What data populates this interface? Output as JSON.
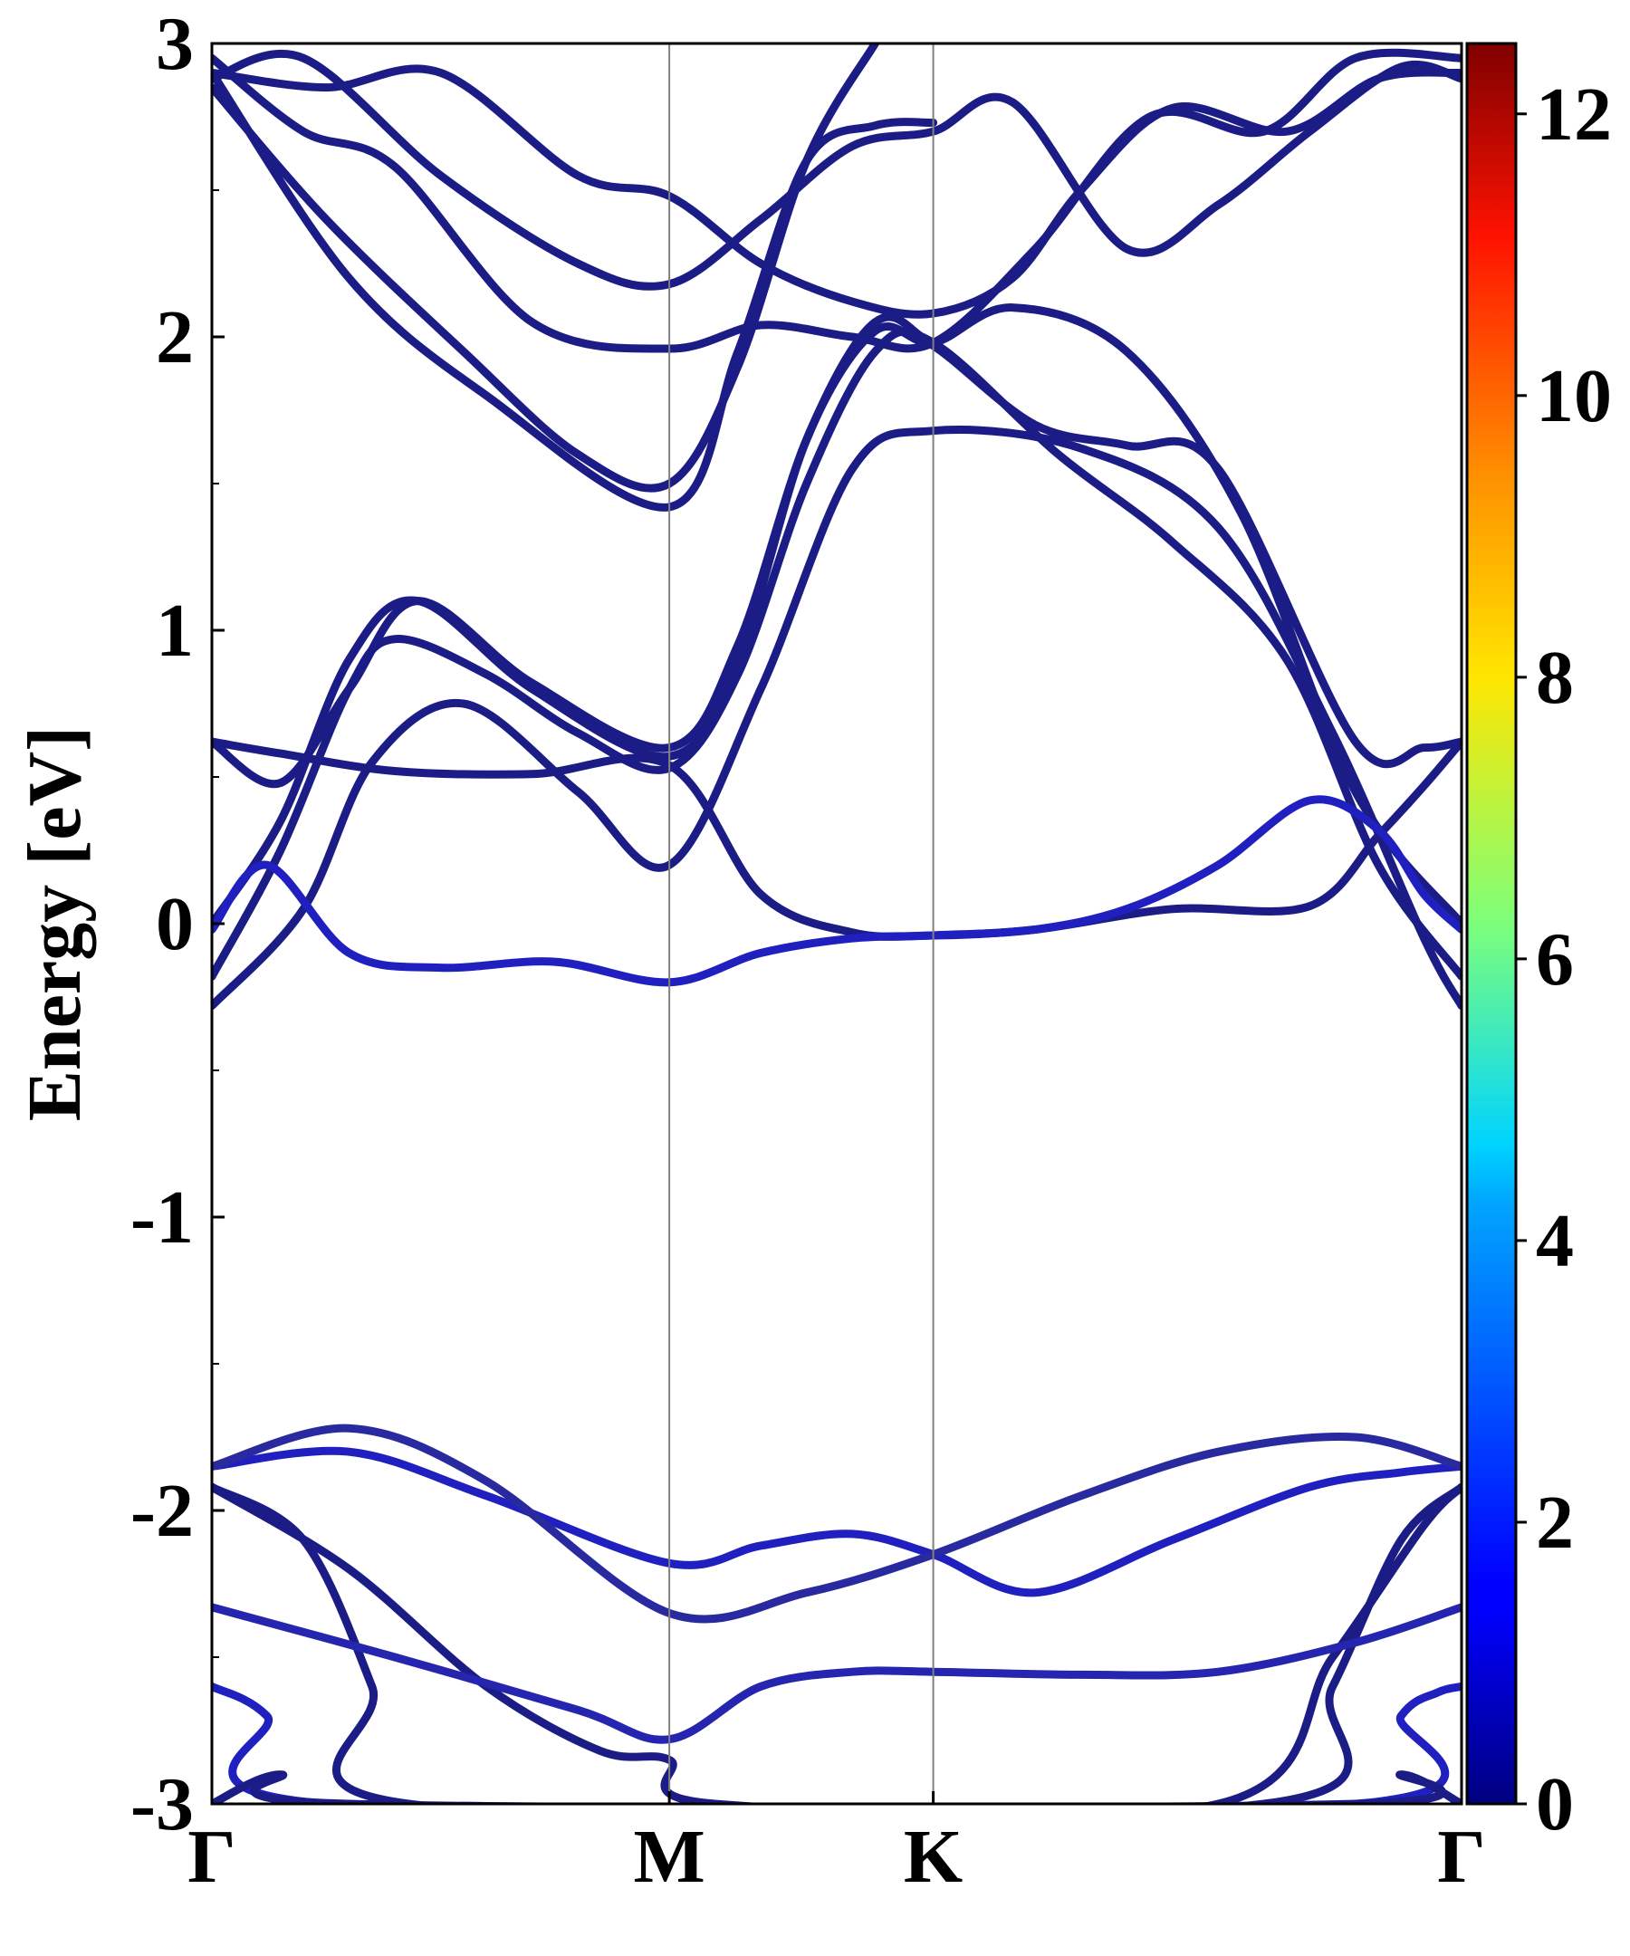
{
  "chart_data": {
    "type": "line",
    "title": "",
    "xlabel": "",
    "ylabel": "Energy [eV]",
    "ylim": [
      -3,
      3
    ],
    "y_ticks": [
      "3",
      "2",
      "1",
      "0",
      "-1",
      "-2",
      "-3"
    ],
    "y_tick_values": [
      3,
      2,
      1,
      0,
      -1,
      -2,
      -3
    ],
    "k_points": [
      {
        "label": "Γ",
        "x": 0.0
      },
      {
        "label": "M",
        "x": 1.0
      },
      {
        "label": "K",
        "x": 1.577
      },
      {
        "label": "Γ",
        "x": 2.732
      }
    ],
    "xlim": [
      0,
      2.732
    ],
    "grid": false,
    "colorbar": {
      "colormap": "jet",
      "range": [
        0,
        12.5
      ],
      "ticks": [
        "0",
        "2",
        "4",
        "6",
        "8",
        "10",
        "12"
      ],
      "tick_values": [
        0,
        2,
        4,
        6,
        8,
        10,
        12
      ]
    },
    "series": [
      {
        "color": "#1c1c86",
        "x": [
          0,
          0.2,
          0.35,
          0.55,
          0.8,
          1.0,
          1.2,
          1.4,
          1.577,
          1.9,
          2.2,
          2.45,
          2.65,
          2.732
        ],
        "y": [
          -0.28,
          0.05,
          0.55,
          0.75,
          0.45,
          0.2,
          0.8,
          1.55,
          1.68,
          1.62,
          1.35,
          0.65,
          -0.05,
          -0.28
        ]
      },
      {
        "color": "#1c1c86",
        "x": [
          0,
          0.15,
          0.3,
          0.4,
          0.6,
          0.8,
          1.0,
          1.15,
          1.3,
          1.45,
          1.577,
          1.85,
          2.1,
          2.35,
          2.55,
          2.732
        ],
        "y": [
          -0.18,
          0.25,
          0.8,
          0.97,
          0.85,
          0.65,
          0.53,
          0.85,
          1.5,
          1.95,
          1.98,
          1.6,
          1.3,
          0.9,
          0.2,
          -0.18
        ]
      },
      {
        "color": "#1c1c86",
        "x": [
          0,
          0.15,
          0.3,
          0.45,
          0.7,
          1.0,
          1.15,
          1.3,
          1.45,
          1.577,
          1.75,
          2.0,
          2.25,
          2.5,
          2.732
        ],
        "y": [
          0.0,
          0.35,
          0.9,
          1.1,
          0.8,
          0.57,
          0.9,
          1.65,
          2.02,
          1.98,
          2.1,
          1.95,
          1.4,
          0.45,
          0.0
        ]
      },
      {
        "color": "#1c1c86",
        "x": [
          0,
          0.15,
          0.3,
          0.45,
          0.7,
          1.0,
          1.15,
          1.3,
          1.45,
          1.577,
          1.8,
          2.0,
          2.2,
          2.5,
          2.65,
          2.732
        ],
        "y": [
          0.62,
          0.48,
          0.8,
          1.1,
          0.82,
          0.6,
          0.95,
          1.65,
          2.05,
          1.97,
          1.7,
          1.63,
          1.55,
          0.62,
          0.6,
          0.62
        ]
      },
      {
        "color": "#1c1c86",
        "x": [
          0,
          0.15,
          0.4,
          0.7,
          1.0,
          1.2,
          1.4,
          1.577,
          1.8,
          2.1,
          2.4,
          2.55,
          2.65,
          2.732
        ],
        "y": [
          0.62,
          0.58,
          0.52,
          0.51,
          0.54,
          0.1,
          -0.03,
          -0.04,
          -0.02,
          0.05,
          0.06,
          0.3,
          0.47,
          0.62
        ]
      },
      {
        "color": "#2020c0",
        "x": [
          0,
          0.12,
          0.3,
          0.5,
          0.75,
          1.0,
          1.2,
          1.4,
          1.577,
          1.8,
          2.0,
          2.2,
          2.4,
          2.55,
          2.65,
          2.732
        ],
        "y": [
          -0.02,
          0.2,
          -0.1,
          -0.15,
          -0.13,
          -0.2,
          -0.1,
          -0.05,
          -0.04,
          -0.02,
          0.05,
          0.2,
          0.42,
          0.32,
          0.1,
          -0.02
        ]
      },
      {
        "color": "#1c1c86",
        "x": [
          0,
          0.3,
          0.6,
          1.0,
          1.15,
          1.3,
          1.45,
          1.577
        ],
        "y": [
          2.9,
          2.2,
          1.8,
          1.42,
          1.95,
          2.6,
          2.72,
          2.73
        ]
      },
      {
        "color": "#1c1c86",
        "x": [
          0,
          0.25,
          0.55,
          0.8,
          1.0,
          1.15,
          1.3,
          1.45
        ],
        "y": [
          2.85,
          2.4,
          1.95,
          1.6,
          1.5,
          1.9,
          2.6,
          3.0
        ]
      },
      {
        "color": "#1c1c86",
        "x": [
          0,
          0.2,
          0.5,
          0.8,
          1.0,
          1.2,
          1.4,
          1.577,
          1.75,
          2.0,
          2.2,
          2.4,
          2.6,
          2.732
        ],
        "y": [
          2.88,
          2.95,
          2.55,
          2.25,
          2.18,
          2.4,
          2.65,
          2.7,
          2.8,
          2.3,
          2.45,
          2.7,
          2.92,
          2.88
        ]
      },
      {
        "color": "#1c1c86",
        "x": [
          0,
          0.25,
          0.5,
          0.8,
          1.0,
          1.2,
          1.4,
          1.577,
          1.75,
          1.9,
          2.1,
          2.35,
          2.55,
          2.732
        ],
        "y": [
          2.9,
          2.85,
          2.9,
          2.55,
          2.48,
          2.25,
          2.12,
          2.08,
          2.2,
          2.5,
          2.78,
          2.7,
          2.88,
          2.9
        ]
      },
      {
        "color": "#1c1c86",
        "x": [
          0,
          0.2,
          0.4,
          0.7,
          1.0,
          1.2,
          1.4,
          1.577,
          1.8,
          2.05,
          2.3,
          2.5,
          2.732
        ],
        "y": [
          2.95,
          2.7,
          2.58,
          2.05,
          1.96,
          2.04,
          2.0,
          1.98,
          2.3,
          2.75,
          2.7,
          2.95,
          2.95
        ]
      },
      {
        "color": "#2020c0",
        "x": [
          0,
          0.3,
          0.6,
          1.0,
          1.2,
          1.4,
          1.577,
          1.8,
          2.1,
          2.4,
          2.6,
          2.732
        ],
        "y": [
          -1.85,
          -1.8,
          -1.95,
          -2.18,
          -2.12,
          -2.08,
          -2.15,
          -2.28,
          -2.1,
          -1.92,
          -1.87,
          -1.85
        ]
      },
      {
        "color": "#2a2aa0",
        "x": [
          0,
          0.3,
          0.6,
          1.0,
          1.3,
          1.577,
          1.9,
          2.2,
          2.5,
          2.732
        ],
        "y": [
          -1.85,
          -1.72,
          -1.9,
          -2.35,
          -2.28,
          -2.15,
          -1.95,
          -1.8,
          -1.75,
          -1.85
        ]
      },
      {
        "color": "#1c1c86",
        "x": [
          0,
          0.3,
          0.6,
          0.85,
          1.0,
          1.1,
          2.2,
          2.45,
          2.65,
          2.732
        ],
        "y": [
          -1.92,
          -2.2,
          -2.6,
          -2.82,
          -2.85,
          -3.0,
          -3.0,
          -2.5,
          -2.05,
          -1.92
        ]
      },
      {
        "color": "#1c1c86",
        "x": [
          0,
          0.2,
          0.35,
          0.43,
          2.3,
          2.45,
          2.6,
          2.732
        ],
        "y": [
          -1.92,
          -2.1,
          -2.6,
          -3.0,
          -3.0,
          -2.6,
          -2.1,
          -1.92
        ]
      },
      {
        "color": "#2525b0",
        "x": [
          0,
          0.4,
          0.8,
          1.0,
          1.2,
          1.4,
          1.577,
          1.9,
          2.2,
          2.5,
          2.732
        ],
        "y": [
          -2.33,
          -2.5,
          -2.68,
          -2.78,
          -2.6,
          -2.55,
          -2.55,
          -2.56,
          -2.55,
          -2.45,
          -2.33
        ]
      },
      {
        "color": "#2020c0",
        "x": [
          0,
          0.12,
          0.25,
          2.5,
          2.6,
          2.68,
          2.732
        ],
        "y": [
          -2.6,
          -2.7,
          -3.0,
          -3.0,
          -2.7,
          -2.62,
          -2.6
        ]
      },
      {
        "color": "#1c1c86",
        "x": [
          0,
          0.15,
          0.3,
          2.5,
          2.6,
          2.732
        ],
        "y": [
          -3.0,
          -2.9,
          -3.0,
          -3.0,
          -2.9,
          -3.0
        ]
      }
    ]
  }
}
